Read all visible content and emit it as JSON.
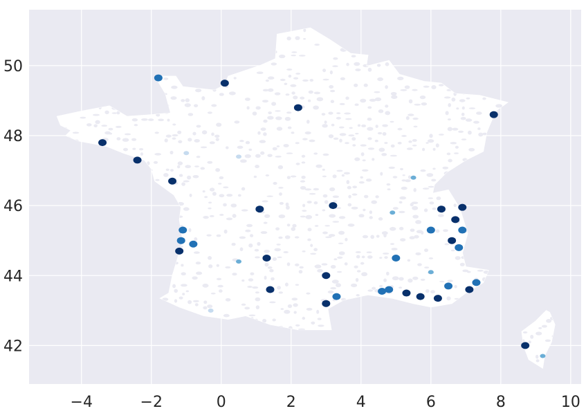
{
  "chart_data": {
    "type": "map",
    "title": "",
    "xlabel": "",
    "ylabel": "",
    "xlim": [
      -5.5,
      10.3
    ],
    "ylim": [
      40.9,
      51.6
    ],
    "x_ticks": [
      -4,
      -2,
      0,
      2,
      4,
      6,
      8,
      10
    ],
    "y_ticks": [
      42,
      44,
      46,
      48,
      50
    ],
    "x_tick_labels": [
      "−4",
      "−2",
      "0",
      "2",
      "4",
      "6",
      "8",
      "10"
    ],
    "y_tick_labels": [
      "42",
      "44",
      "46",
      "48",
      "50"
    ],
    "grid": true,
    "background_color": "#eaeaf2",
    "base_color": "#ffffff",
    "colormap": [
      "#f7fbff",
      "#c6dbef",
      "#6baed6",
      "#2171b5",
      "#08306b"
    ],
    "highlighted_regions": [
      {
        "lon": 6.9,
        "lat": 45.95,
        "level": 4
      },
      {
        "lon": 6.7,
        "lat": 45.6,
        "level": 4
      },
      {
        "lon": 6.9,
        "lat": 45.3,
        "level": 3
      },
      {
        "lon": 6.8,
        "lat": 44.8,
        "level": 3
      },
      {
        "lon": 6.3,
        "lat": 45.9,
        "level": 4
      },
      {
        "lon": 6.0,
        "lat": 45.3,
        "level": 3
      },
      {
        "lon": 6.6,
        "lat": 45.0,
        "level": 4
      },
      {
        "lon": 4.8,
        "lat": 43.6,
        "level": 3
      },
      {
        "lon": 4.6,
        "lat": 43.55,
        "level": 3
      },
      {
        "lon": 5.3,
        "lat": 43.5,
        "level": 4
      },
      {
        "lon": 5.7,
        "lat": 43.4,
        "level": 4
      },
      {
        "lon": 6.2,
        "lat": 43.35,
        "level": 4
      },
      {
        "lon": 6.5,
        "lat": 43.7,
        "level": 3
      },
      {
        "lon": 7.1,
        "lat": 43.6,
        "level": 4
      },
      {
        "lon": 7.3,
        "lat": 43.8,
        "level": 3
      },
      {
        "lon": 6.0,
        "lat": 44.1,
        "level": 2
      },
      {
        "lon": 5.0,
        "lat": 44.5,
        "level": 3
      },
      {
        "lon": 3.0,
        "lat": 43.2,
        "level": 4
      },
      {
        "lon": 3.0,
        "lat": 44.0,
        "level": 4
      },
      {
        "lon": 3.3,
        "lat": 43.4,
        "level": 3
      },
      {
        "lon": -1.2,
        "lat": 44.7,
        "level": 4
      },
      {
        "lon": -1.15,
        "lat": 45.0,
        "level": 3
      },
      {
        "lon": -1.1,
        "lat": 45.3,
        "level": 3
      },
      {
        "lon": -0.8,
        "lat": 44.9,
        "level": 3
      },
      {
        "lon": -1.8,
        "lat": 49.65,
        "level": 3
      },
      {
        "lon": 0.1,
        "lat": 49.5,
        "level": 4
      },
      {
        "lon": -3.4,
        "lat": 47.8,
        "level": 4
      },
      {
        "lon": -2.4,
        "lat": 47.3,
        "level": 4
      },
      {
        "lon": -1.4,
        "lat": 46.7,
        "level": 4
      },
      {
        "lon": 9.2,
        "lat": 41.7,
        "level": 2
      },
      {
        "lon": 8.7,
        "lat": 42.0,
        "level": 4
      },
      {
        "lon": 7.8,
        "lat": 48.6,
        "level": 4
      },
      {
        "lon": 2.2,
        "lat": 48.8,
        "level": 4
      },
      {
        "lon": 1.1,
        "lat": 45.9,
        "level": 4
      },
      {
        "lon": 1.4,
        "lat": 43.6,
        "level": 4
      },
      {
        "lon": 1.3,
        "lat": 44.5,
        "level": 4
      },
      {
        "lon": 3.2,
        "lat": 46.0,
        "level": 4
      },
      {
        "lon": 5.5,
        "lat": 46.8,
        "level": 2
      },
      {
        "lon": 4.9,
        "lat": 45.8,
        "level": 2
      },
      {
        "lon": 0.5,
        "lat": 44.4,
        "level": 2
      },
      {
        "lon": -0.3,
        "lat": 43.0,
        "level": 1
      },
      {
        "lon": -1.0,
        "lat": 47.5,
        "level": 1
      },
      {
        "lon": 0.5,
        "lat": 47.4,
        "level": 1
      }
    ]
  }
}
